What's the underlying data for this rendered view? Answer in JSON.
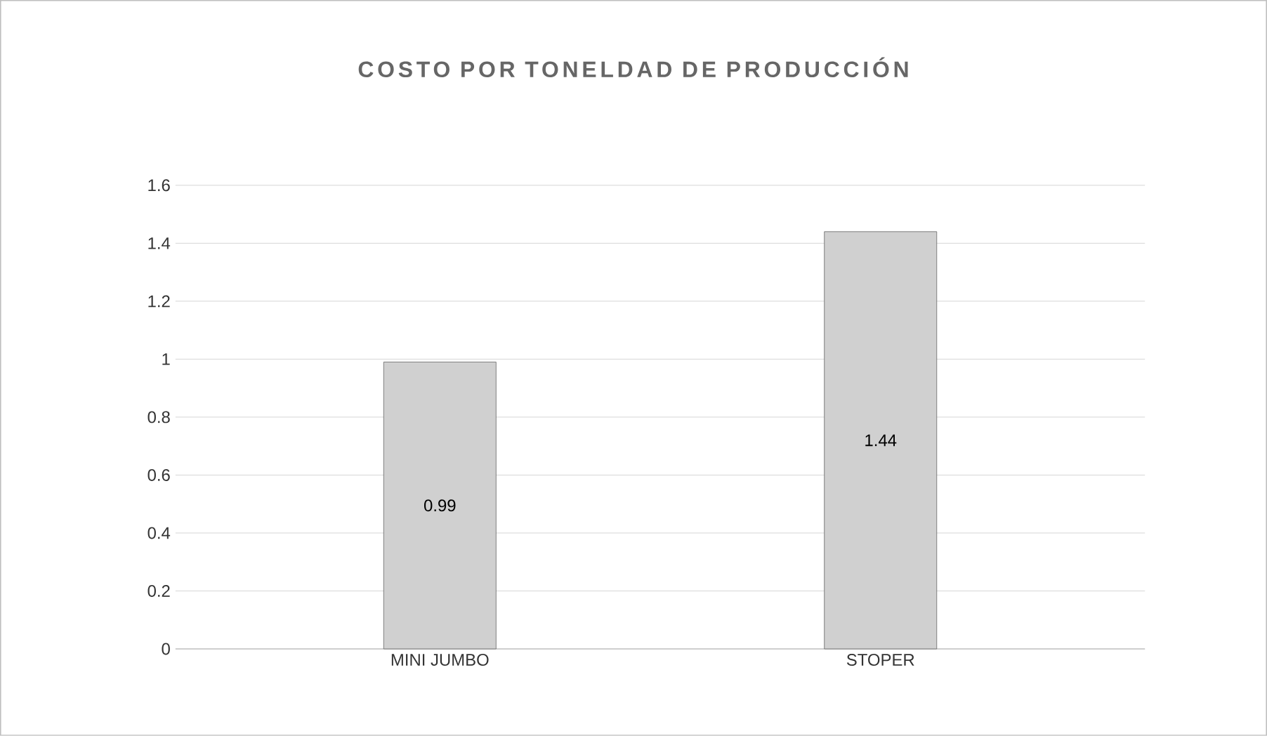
{
  "chart_data": {
    "type": "bar",
    "title": "COSTO POR TONELDAD DE PRODUCCIÓN",
    "categories": [
      "MINI JUMBO",
      "STOPER"
    ],
    "values": [
      0.99,
      1.44
    ],
    "color": "#d0d0d0",
    "value_labels": [
      "0.99",
      "1.44"
    ],
    "ylim": [
      0,
      1.6
    ],
    "yticks": [
      0,
      0.2,
      0.4,
      0.6,
      0.8,
      1,
      1.2,
      1.4,
      1.6
    ],
    "grid": "y"
  }
}
